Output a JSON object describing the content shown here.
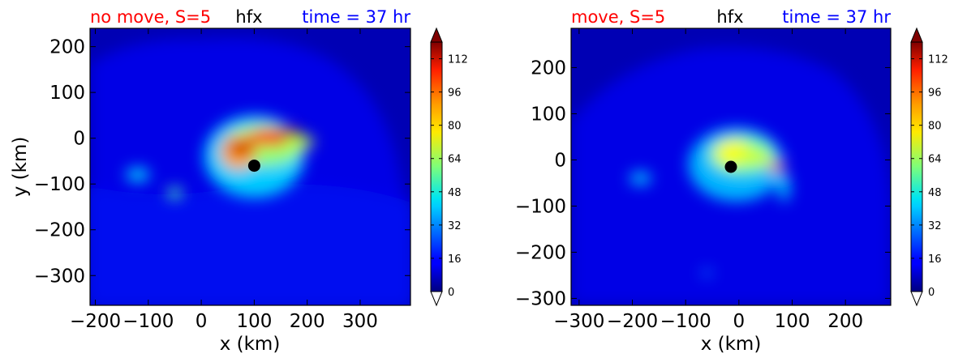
{
  "chart_data": [
    {
      "type": "heatmap",
      "title_left": "no move, S=5",
      "title_center": "hfx",
      "title_right": "time = 37 hr",
      "xlabel": "x (km)",
      "ylabel": "y (km)",
      "xlim": [
        -210,
        395
      ],
      "ylim": [
        -365,
        240
      ],
      "xticks": [
        -200,
        -100,
        0,
        100,
        200,
        300
      ],
      "xtick_labels": [
        "−200",
        "−100",
        "0",
        "100",
        "200",
        "300"
      ],
      "yticks": [
        200,
        100,
        0,
        -100,
        -200,
        -300
      ],
      "ytick_labels": [
        "200",
        "100",
        "0",
        "−100",
        "−200",
        "−300"
      ],
      "center_marker": {
        "x": 100,
        "y": -60
      },
      "features": [
        {
          "x": 100,
          "y": -40,
          "rx": 95,
          "ry": 90,
          "level": 28
        },
        {
          "x": 118,
          "y": -15,
          "rx": 75,
          "ry": 45,
          "level": 55
        },
        {
          "x": 70,
          "y": -30,
          "rx": 34,
          "ry": 38,
          "level": 80
        },
        {
          "x": 135,
          "y": 2,
          "rx": 48,
          "ry": 18,
          "level": 100
        },
        {
          "x": 165,
          "y": 10,
          "rx": 22,
          "ry": 13,
          "level": 112
        },
        {
          "x": 75,
          "y": -22,
          "rx": 26,
          "ry": 16,
          "level": 110
        },
        {
          "x": 185,
          "y": -8,
          "rx": 28,
          "ry": 14,
          "level": 60
        },
        {
          "x": -120,
          "y": -80,
          "rx": 22,
          "ry": 15,
          "level": 30
        },
        {
          "x": -50,
          "y": -120,
          "rx": 14,
          "ry": 12,
          "level": 45
        }
      ]
    },
    {
      "type": "heatmap",
      "title_left": "move, S=5",
      "title_center": "hfx",
      "title_right": "time = 37 hr",
      "xlabel": "x (km)",
      "ylabel": "",
      "xlim": [
        -315,
        285
      ],
      "ylim": [
        -315,
        285
      ],
      "xticks": [
        -300,
        -200,
        -100,
        0,
        100,
        200
      ],
      "xtick_labels": [
        "−300",
        "−200",
        "−100",
        "0",
        "100",
        "200"
      ],
      "yticks": [
        200,
        100,
        0,
        -100,
        -200,
        -300
      ],
      "ytick_labels": [
        "200",
        "100",
        "0",
        "−100",
        "−200",
        "−300"
      ],
      "center_marker": {
        "x": -15,
        "y": -15
      },
      "features": [
        {
          "x": -5,
          "y": -10,
          "rx": 90,
          "ry": 80,
          "level": 25
        },
        {
          "x": 5,
          "y": 10,
          "rx": 60,
          "ry": 40,
          "level": 48
        },
        {
          "x": -10,
          "y": 15,
          "rx": 35,
          "ry": 28,
          "level": 68
        },
        {
          "x": 30,
          "y": 5,
          "rx": 30,
          "ry": 18,
          "level": 62
        },
        {
          "x": 70,
          "y": -15,
          "rx": 14,
          "ry": 10,
          "level": 92
        },
        {
          "x": 85,
          "y": -60,
          "rx": 10,
          "ry": 30,
          "level": 30
        },
        {
          "x": -185,
          "y": -40,
          "rx": 20,
          "ry": 14,
          "level": 28
        },
        {
          "x": -60,
          "y": -245,
          "rx": 10,
          "ry": 6,
          "level": 22
        }
      ]
    }
  ],
  "colorbar": {
    "ticks": [
      0,
      16,
      32,
      48,
      64,
      80,
      96,
      112
    ],
    "tick_labels": [
      "0",
      "16",
      "32",
      "48",
      "64",
      "80",
      "96",
      "112"
    ],
    "vmin": 0,
    "vmax": 120
  },
  "colors": {
    "title_left": "#ff0000",
    "title_right": "#0000ff",
    "background_level": "#0000b4",
    "field_base": "#0000e6",
    "marker": "#000000"
  }
}
